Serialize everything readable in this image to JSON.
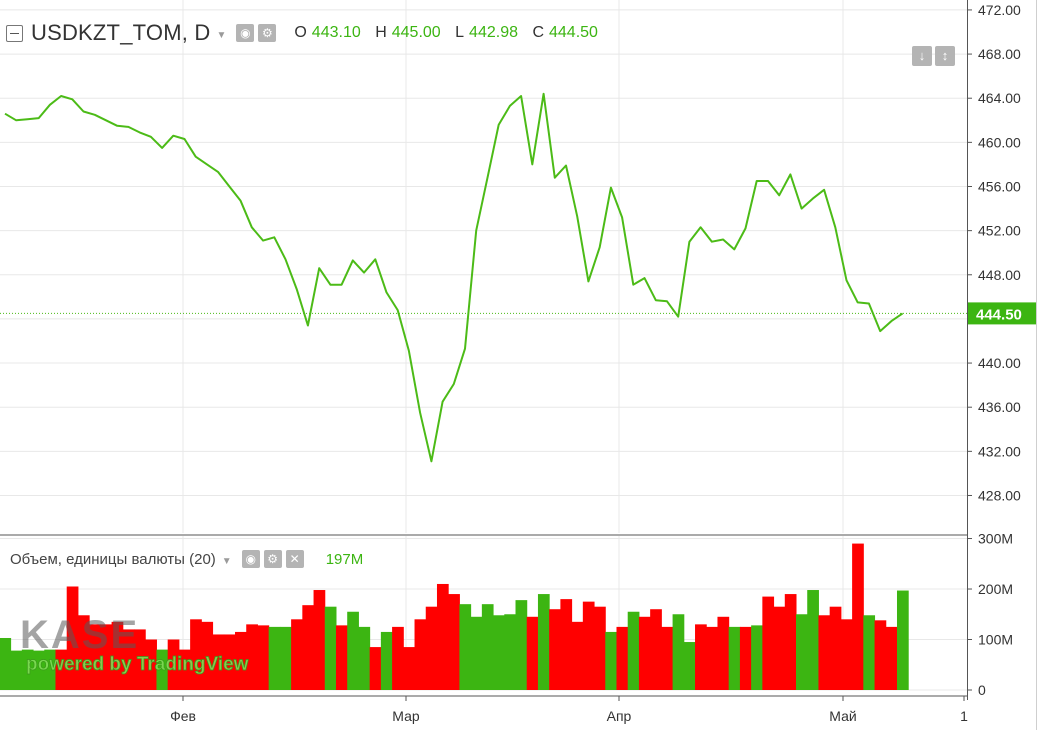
{
  "header": {
    "symbol": "USDKZT_TOM, D",
    "open_label": "O",
    "open": "443.10",
    "high_label": "H",
    "high": "445.00",
    "low_label": "L",
    "low": "442.98",
    "close_label": "C",
    "close": "444.50",
    "icons": [
      "collapse-icon",
      "chevron-down-icon",
      "eye-icon",
      "gear-icon",
      "arrow-down-icon",
      "arrow-up-down-icon"
    ]
  },
  "volume_legend": {
    "title": "Объем, единицы валюты (20)",
    "value": "197M",
    "icons": [
      "chevron-down-icon",
      "eye-icon",
      "gear-icon",
      "close-icon"
    ]
  },
  "watermark": {
    "logo_text": "KASE",
    "powered": "powered by TradingView"
  },
  "colors": {
    "line": "#4cbb17",
    "up": "#3cb512",
    "down": "#ff0000",
    "grid": "#e8e8e8",
    "price_label_bg": "#3cb512"
  },
  "chart_data": [
    {
      "type": "line",
      "title": "USDKZT_TOM, D",
      "series": [
        {
          "values": [
            462.6,
            462.0,
            462.1,
            462.2,
            463.4,
            464.2,
            463.9,
            462.8,
            462.5,
            462.0,
            461.5,
            461.4,
            460.9,
            460.5,
            459.5,
            460.6,
            460.3,
            458.7,
            458.0,
            457.3,
            456.0,
            454.7,
            452.3,
            451.1,
            451.4,
            449.4,
            446.7,
            443.4,
            448.6,
            447.1,
            447.1,
            449.3,
            448.2,
            449.4,
            446.4,
            444.8,
            441.1,
            435.5,
            431.1,
            436.5,
            438.1,
            441.3,
            452.0,
            456.8,
            461.6,
            463.3,
            464.2,
            458.0,
            464.4,
            456.8,
            457.9,
            453.3,
            447.4,
            450.5,
            455.9,
            453.2,
            447.1,
            447.7,
            445.7,
            445.6,
            444.2,
            451.0,
            452.3,
            451.0,
            451.2,
            450.3,
            452.2,
            456.5,
            456.5,
            455.2,
            457.1,
            454.0,
            454.9,
            455.7,
            452.3,
            447.5,
            445.5,
            445.4,
            442.9,
            443.8,
            444.5
          ]
        }
      ],
      "x_labels": [
        "Фев",
        "Мар",
        "Апр",
        "Май",
        "1"
      ],
      "y_ticks": [
        "472.00",
        "468.00",
        "464.00",
        "460.00",
        "456.00",
        "452.00",
        "448.00",
        "444.00",
        "440.00",
        "436.00",
        "432.00",
        "428.00"
      ],
      "ylim": [
        424.6,
        472.9
      ],
      "last_price_label": "444.50",
      "grid": true
    },
    {
      "type": "bar",
      "title": "Объем, единицы валюты (20)",
      "values_millions": [
        103,
        78,
        80,
        78,
        80,
        80,
        205,
        148,
        130,
        130,
        135,
        120,
        120,
        100,
        80,
        100,
        80,
        140,
        135,
        110,
        110,
        115,
        130,
        128,
        125,
        125,
        140,
        168,
        198,
        165,
        128,
        155,
        125,
        85,
        115,
        125,
        85,
        140,
        165,
        210,
        190,
        170,
        145,
        170,
        148,
        150,
        178,
        145,
        190,
        160,
        180,
        135,
        175,
        165,
        115,
        125,
        155,
        145,
        160,
        125,
        150,
        95,
        130,
        125,
        145,
        125,
        125,
        128,
        185,
        165,
        190,
        150,
        198,
        148,
        165,
        140,
        290,
        148,
        138,
        125,
        197
      ],
      "up": [
        true,
        true,
        true,
        true,
        true,
        false,
        false,
        false,
        false,
        false,
        false,
        false,
        false,
        false,
        true,
        false,
        false,
        false,
        false,
        false,
        false,
        false,
        false,
        false,
        true,
        true,
        false,
        false,
        false,
        true,
        false,
        true,
        true,
        false,
        true,
        false,
        false,
        false,
        false,
        false,
        false,
        true,
        true,
        true,
        true,
        true,
        true,
        false,
        true,
        false,
        false,
        false,
        false,
        false,
        true,
        false,
        true,
        false,
        false,
        false,
        true,
        true,
        false,
        false,
        false,
        true,
        false,
        true,
        false,
        false,
        false,
        true,
        true,
        false,
        false,
        false,
        false,
        true,
        false,
        false,
        true
      ],
      "y_ticks": [
        "300M",
        "200M",
        "100M",
        "0"
      ],
      "ylim": [
        0,
        305
      ],
      "unit": "M"
    }
  ]
}
